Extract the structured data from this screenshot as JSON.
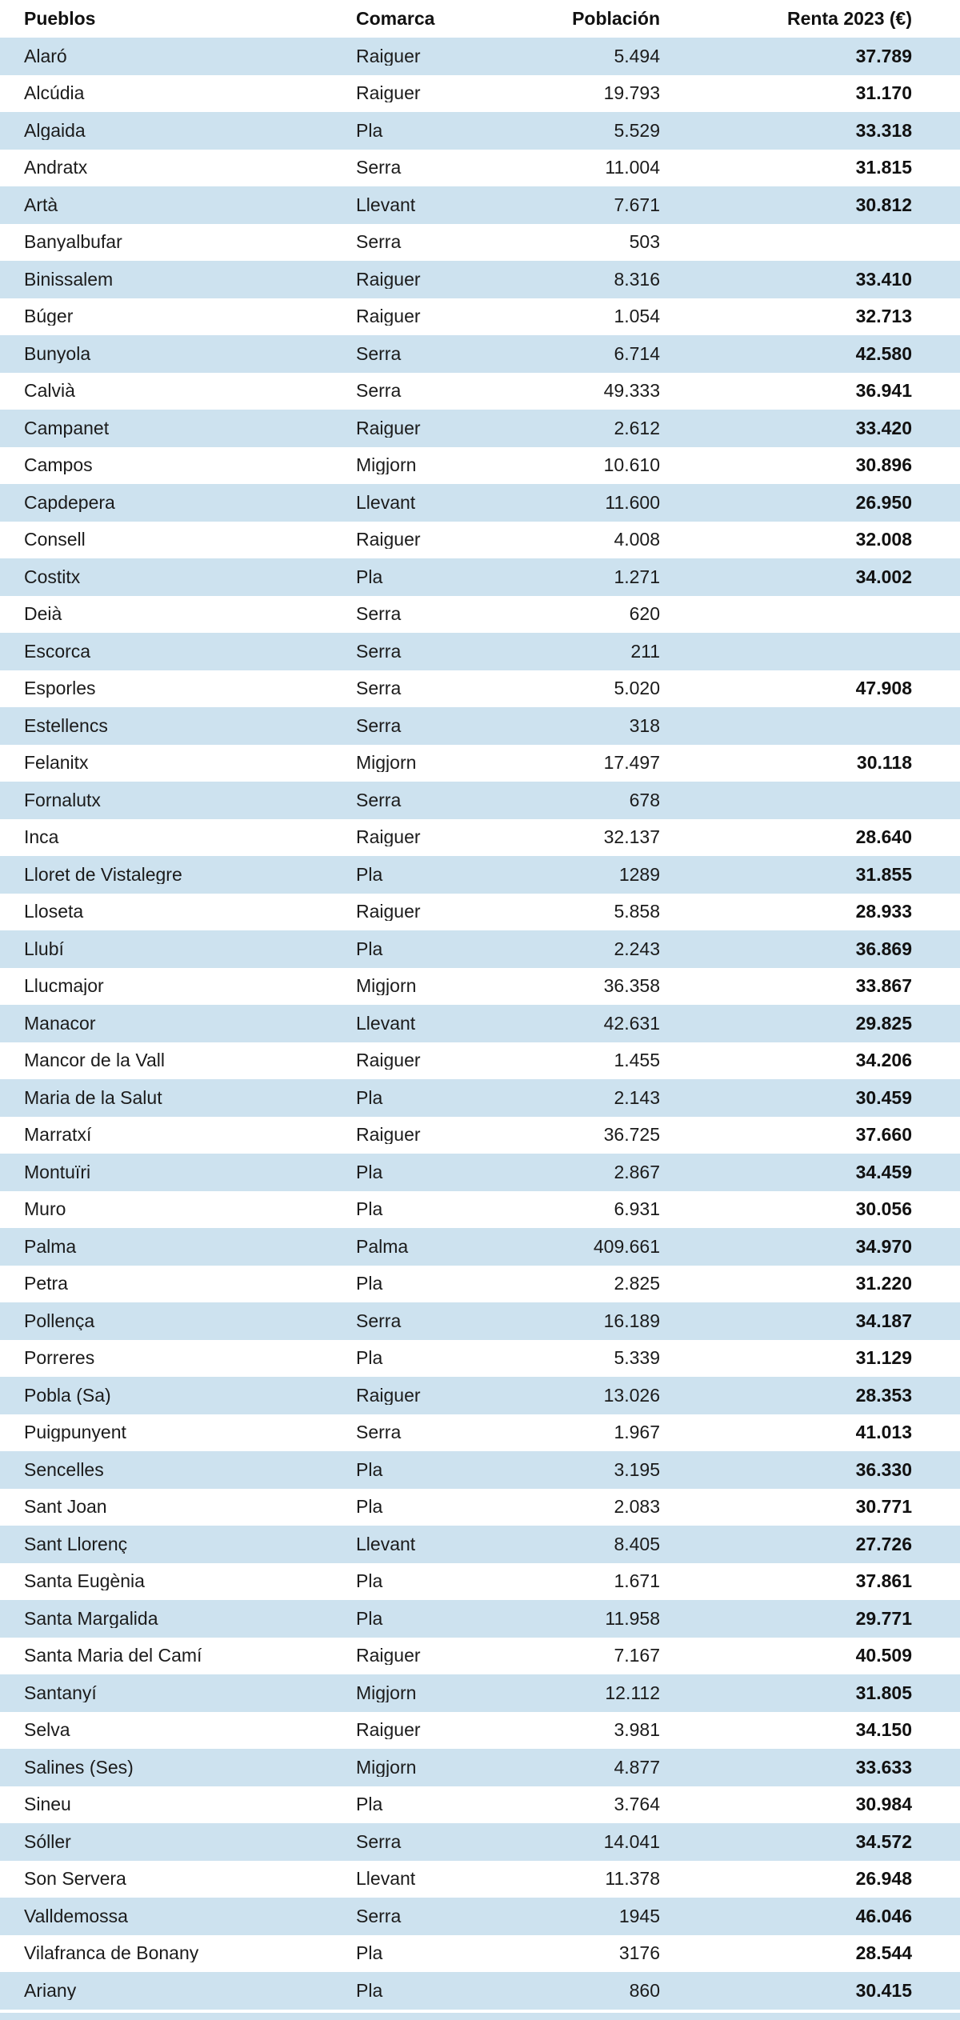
{
  "colors": {
    "row_alt": "#cde2ef",
    "text": "#1b1b1b",
    "bold_text": "#111111",
    "background": "#ffffff"
  },
  "chart_data": {
    "type": "table",
    "title": "",
    "columns": [
      "Pueblos",
      "Comarca",
      "Población",
      "Renta 2023 (€)"
    ],
    "rows": [
      [
        "Alaró",
        "Raiguer",
        "5.494",
        "37.789"
      ],
      [
        "Alcúdia",
        "Raiguer",
        "19.793",
        "31.170"
      ],
      [
        "Algaida",
        "Pla",
        "5.529",
        "33.318"
      ],
      [
        "Andratx",
        "Serra",
        "11.004",
        "31.815"
      ],
      [
        "Artà",
        "Llevant",
        "7.671",
        "30.812"
      ],
      [
        "Banyalbufar",
        "Serra",
        "503",
        ""
      ],
      [
        "Binissalem",
        "Raiguer",
        "8.316",
        "33.410"
      ],
      [
        "Búger",
        "Raiguer",
        "1.054",
        "32.713"
      ],
      [
        "Bunyola",
        "Serra",
        "6.714",
        "42.580"
      ],
      [
        "Calvià",
        "Serra",
        "49.333",
        "36.941"
      ],
      [
        "Campanet",
        "Raiguer",
        "2.612",
        "33.420"
      ],
      [
        "Campos",
        "Migjorn",
        "10.610",
        "30.896"
      ],
      [
        "Capdepera",
        "Llevant",
        "11.600",
        "26.950"
      ],
      [
        "Consell",
        "Raiguer",
        "4.008",
        "32.008"
      ],
      [
        "Costitx",
        "Pla",
        "1.271",
        "34.002"
      ],
      [
        "Deià",
        "Serra",
        "620",
        ""
      ],
      [
        "Escorca",
        "Serra",
        "211",
        ""
      ],
      [
        "Esporles",
        "Serra",
        "5.020",
        "47.908"
      ],
      [
        "Estellencs",
        "Serra",
        "318",
        ""
      ],
      [
        "Felanitx",
        "Migjorn",
        "17.497",
        "30.118"
      ],
      [
        "Fornalutx",
        "Serra",
        "678",
        ""
      ],
      [
        "Inca",
        "Raiguer",
        "32.137",
        "28.640"
      ],
      [
        "Lloret de Vistalegre",
        "Pla",
        "1289",
        "31.855"
      ],
      [
        "Lloseta",
        "Raiguer",
        "5.858",
        "28.933"
      ],
      [
        "Llubí",
        "Pla",
        "2.243",
        "36.869"
      ],
      [
        "Llucmajor",
        "Migjorn",
        "36.358",
        "33.867"
      ],
      [
        "Manacor",
        "Llevant",
        "42.631",
        "29.825"
      ],
      [
        "Mancor de la Vall",
        "Raiguer",
        "1.455",
        "34.206"
      ],
      [
        "Maria de la Salut",
        "Pla",
        "2.143",
        "30.459"
      ],
      [
        "Marratxí",
        "Raiguer",
        "36.725",
        "37.660"
      ],
      [
        "Montuïri",
        "Pla",
        "2.867",
        "34.459"
      ],
      [
        "Muro",
        "Pla",
        "6.931",
        "30.056"
      ],
      [
        "Palma",
        "Palma",
        "409.661",
        "34.970"
      ],
      [
        "Petra",
        "Pla",
        "2.825",
        "31.220"
      ],
      [
        "Pollença",
        "Serra",
        "16.189",
        "34.187"
      ],
      [
        "Porreres",
        "Pla",
        "5.339",
        "31.129"
      ],
      [
        "Pobla (Sa)",
        "Raiguer",
        "13.026",
        "28.353"
      ],
      [
        "Puigpunyent",
        "Serra",
        "1.967",
        "41.013"
      ],
      [
        "Sencelles",
        "Pla",
        "3.195",
        "36.330"
      ],
      [
        "Sant Joan",
        "Pla",
        "2.083",
        "30.771"
      ],
      [
        "Sant Llorenç",
        "Llevant",
        "8.405",
        "27.726"
      ],
      [
        "Santa Eugènia",
        "Pla",
        "1.671",
        "37.861"
      ],
      [
        "Santa Margalida",
        "Pla",
        "11.958",
        "29.771"
      ],
      [
        "Santa Maria del Camí",
        "Raiguer",
        "7.167",
        "40.509"
      ],
      [
        "Santanyí",
        "Migjorn",
        "12.112",
        "31.805"
      ],
      [
        "Selva",
        "Raiguer",
        "3.981",
        "34.150"
      ],
      [
        "Salines (Ses)",
        "Migjorn",
        "4.877",
        "33.633"
      ],
      [
        "Sineu",
        "Pla",
        "3.764",
        "30.984"
      ],
      [
        "Sóller",
        "Serra",
        "14.041",
        "34.572"
      ],
      [
        "Son Servera",
        "Llevant",
        "11.378",
        "26.948"
      ],
      [
        "Valldemossa",
        "Serra",
        "1945",
        "46.046"
      ],
      [
        "Vilafranca de Bonany",
        "Pla",
        "3176",
        "28.544"
      ],
      [
        "Ariany",
        "Pla",
        "860",
        "30.415"
      ]
    ]
  }
}
